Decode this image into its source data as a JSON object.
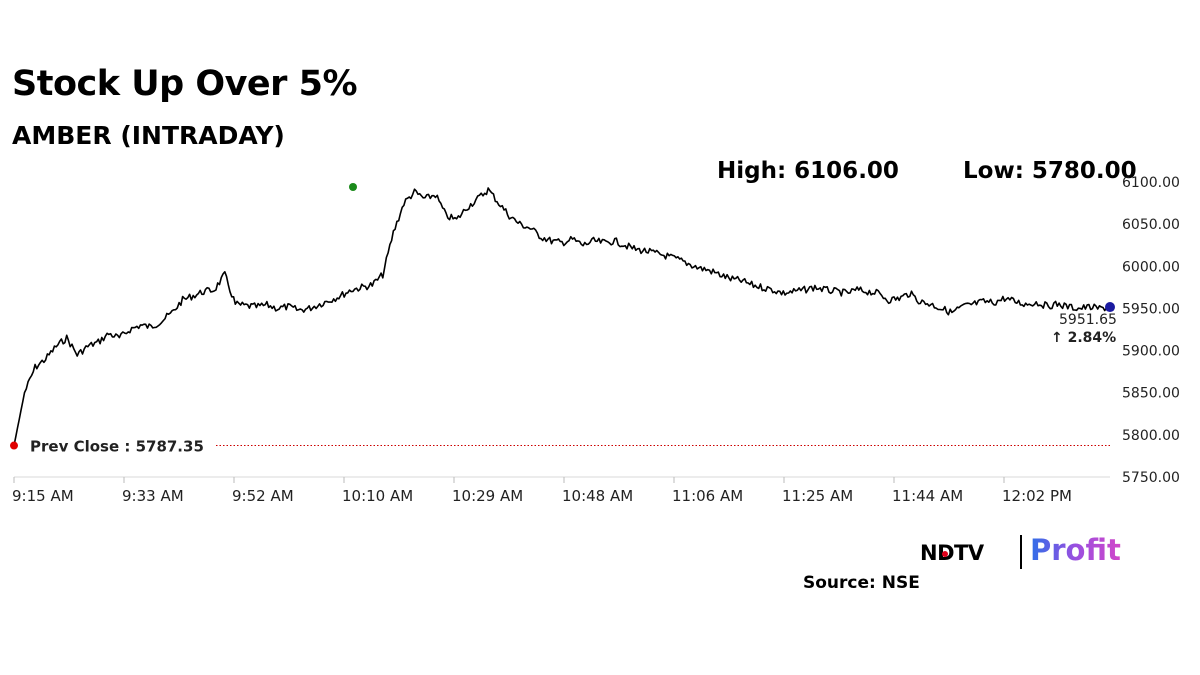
{
  "title": "Stock Up Over 5%",
  "subtitle": "AMBER (INTRADAY)",
  "stats": {
    "high": "High: 6106.00",
    "low": "Low: 5780.00"
  },
  "source": "Source: NSE",
  "brand": {
    "left": "NDTV",
    "right": "Profit"
  },
  "chart_data": {
    "type": "line",
    "title": "AMBER (INTRADAY)",
    "xlabel": "",
    "ylabel": "",
    "ylim": [
      5750,
      6100
    ],
    "y_ticks": [
      5750,
      5800,
      5850,
      5900,
      5950,
      6000,
      6050,
      6100
    ],
    "y_tick_labels": [
      "5750.00",
      "5800.00",
      "5850.00",
      "5900.00",
      "5950.00",
      "6000.00",
      "6050.00",
      "6100.00"
    ],
    "x_tick_labels": [
      "9:15 AM",
      "9:33 AM",
      "9:52 AM",
      "10:10 AM",
      "10:29 AM",
      "10:48 AM",
      "11:06 AM",
      "11:25 AM",
      "11:44 AM",
      "12:02 PM"
    ],
    "grid": false,
    "series": [
      {
        "values": [
          5787.35,
          5850,
          5880,
          5890,
          5905,
          5915,
          5895,
          5905,
          5910,
          5920,
          5915,
          5925,
          5930,
          5928,
          5935,
          5945,
          5960,
          5965,
          5970,
          5972,
          5990,
          5955,
          5953,
          5952,
          5954,
          5950,
          5952,
          5948,
          5950,
          5955,
          5960,
          5965,
          5972,
          5975,
          5978,
          5990,
          6040,
          6075,
          6088,
          6080,
          6085,
          6060,
          6055,
          6070,
          6080,
          6091,
          6075,
          6060,
          6050,
          6045,
          6035,
          6030,
          6028,
          6032,
          6025,
          6030,
          6028,
          6030,
          6025,
          6020,
          6018,
          6015,
          6012,
          6008,
          6003,
          5998,
          5995,
          5990,
          5985,
          5983,
          5978,
          5975,
          5972,
          5968,
          5970,
          5972,
          5975,
          5972,
          5970,
          5968,
          5972,
          5970,
          5968,
          5960,
          5962,
          5968,
          5958,
          5955,
          5950,
          5945,
          5952,
          5955,
          5958,
          5957,
          5962,
          5958,
          5955,
          5957,
          5953,
          5955,
          5952,
          5950,
          5951.65,
          5950,
          5951.65
        ],
        "color": "#000000"
      }
    ],
    "prev_close": {
      "label": "Prev Close : 5787.35",
      "value": 5787.35,
      "color": "#cc0000"
    },
    "last_value": {
      "label": "5951.65",
      "change": "↑ 2.84%",
      "value": 5951.65,
      "change_color": "#108010"
    },
    "marker_colors": {
      "start": "#e00000",
      "high": "#1a8a1a",
      "last": "#1a1aa0"
    }
  }
}
